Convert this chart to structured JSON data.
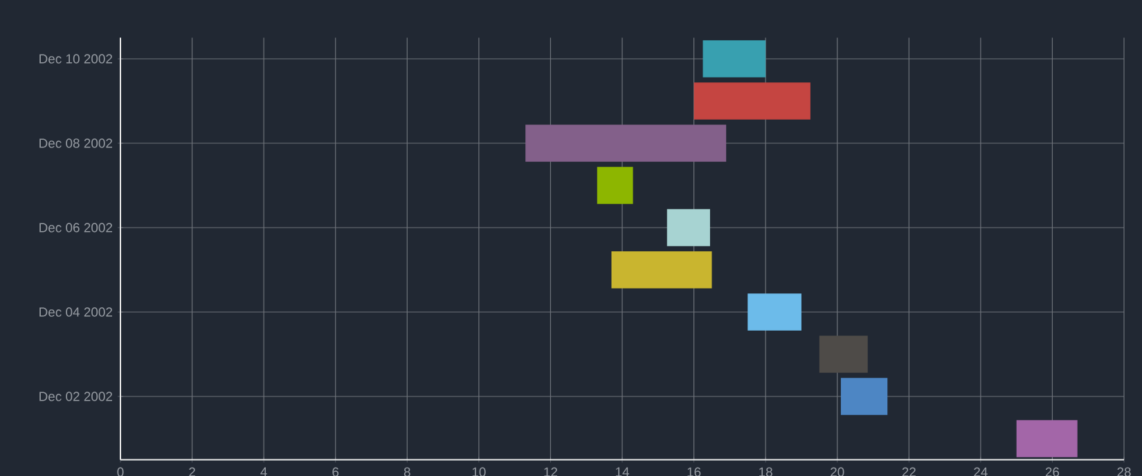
{
  "chart_data": {
    "type": "bar",
    "orientation": "horizontal",
    "categories": [
      "Dec 10 2002",
      null,
      "Dec 08 2002",
      null,
      "Dec 06 2002",
      null,
      "Dec 04 2002",
      null,
      "Dec 02 2002",
      null
    ],
    "base": [
      16.25,
      16.0,
      11.3,
      13.3,
      15.25,
      13.7,
      17.5,
      19.5,
      20.1,
      25.0
    ],
    "values": [
      1.75,
      3.25,
      5.6,
      1.0,
      1.2,
      2.8,
      1.5,
      1.35,
      1.3,
      1.7
    ],
    "colors": [
      "#38a0b0",
      "#c54541",
      "#83608a",
      "#8db600",
      "#a7d3d2",
      "#c9b52f",
      "#6cbbea",
      "#4e4b48",
      "#4d86c4",
      "#a366a8"
    ],
    "xlim": [
      0,
      28
    ],
    "xticks": [
      0,
      2,
      4,
      6,
      8,
      10,
      12,
      14,
      16,
      18,
      20,
      22,
      24,
      26,
      28
    ],
    "grid": true
  }
}
